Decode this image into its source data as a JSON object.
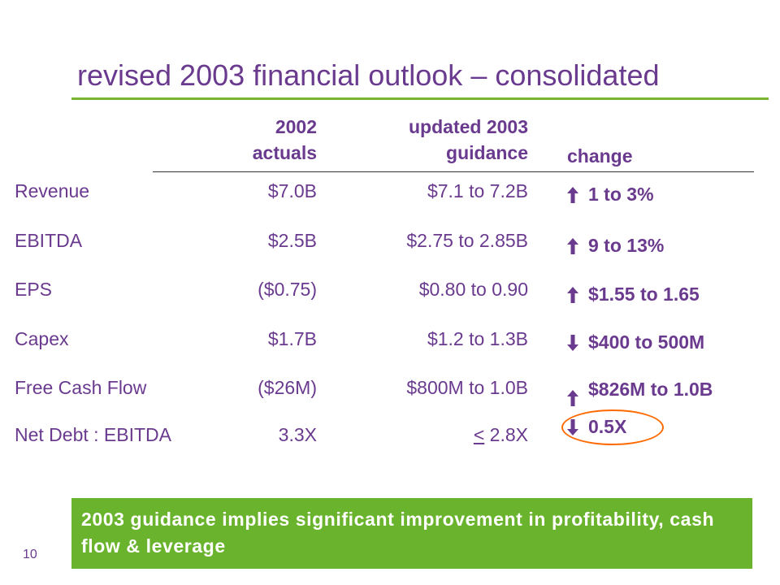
{
  "title": "revised 2003 financial outlook – consolidated",
  "headers": {
    "actuals_line1": "2002",
    "actuals_line2": "actuals",
    "guidance_line1": "updated 2003",
    "guidance_line2": "guidance",
    "change": "change"
  },
  "rows": [
    {
      "label": "Revenue",
      "actual": "$7.0B",
      "guidance": "$7.1 to 7.2B",
      "direction": "up",
      "change": "1 to 3%"
    },
    {
      "label": "EBITDA",
      "actual": "$2.5B",
      "guidance": "$2.75 to 2.85B",
      "direction": "up",
      "change": "9 to 13%"
    },
    {
      "label": "EPS",
      "actual": "($0.75)",
      "guidance": "$0.80 to 0.90",
      "direction": "up",
      "change": "$1.55 to 1.65"
    },
    {
      "label": "Capex",
      "actual": "$1.7B",
      "guidance": "$1.2 to 1.3B",
      "direction": "down",
      "change": "$400 to 500M"
    },
    {
      "label": "Free Cash Flow",
      "actual": "($26M)",
      "guidance": "$800M to 1.0B",
      "direction": "up",
      "change": "$826M to 1.0B"
    },
    {
      "label": "Net Debt : EBITDA",
      "actual": "3.3X",
      "guidance_prefix": "<",
      "guidance": " 2.8X",
      "direction": "down",
      "change": "0.5X"
    }
  ],
  "banner_text": "2003 guidance implies significant improvement in profitability, cash flow & leverage",
  "page_number": "10",
  "colors": {
    "text": "#6a3a8f",
    "accent_green": "#6ab42d",
    "highlight": "#ff6a00"
  }
}
